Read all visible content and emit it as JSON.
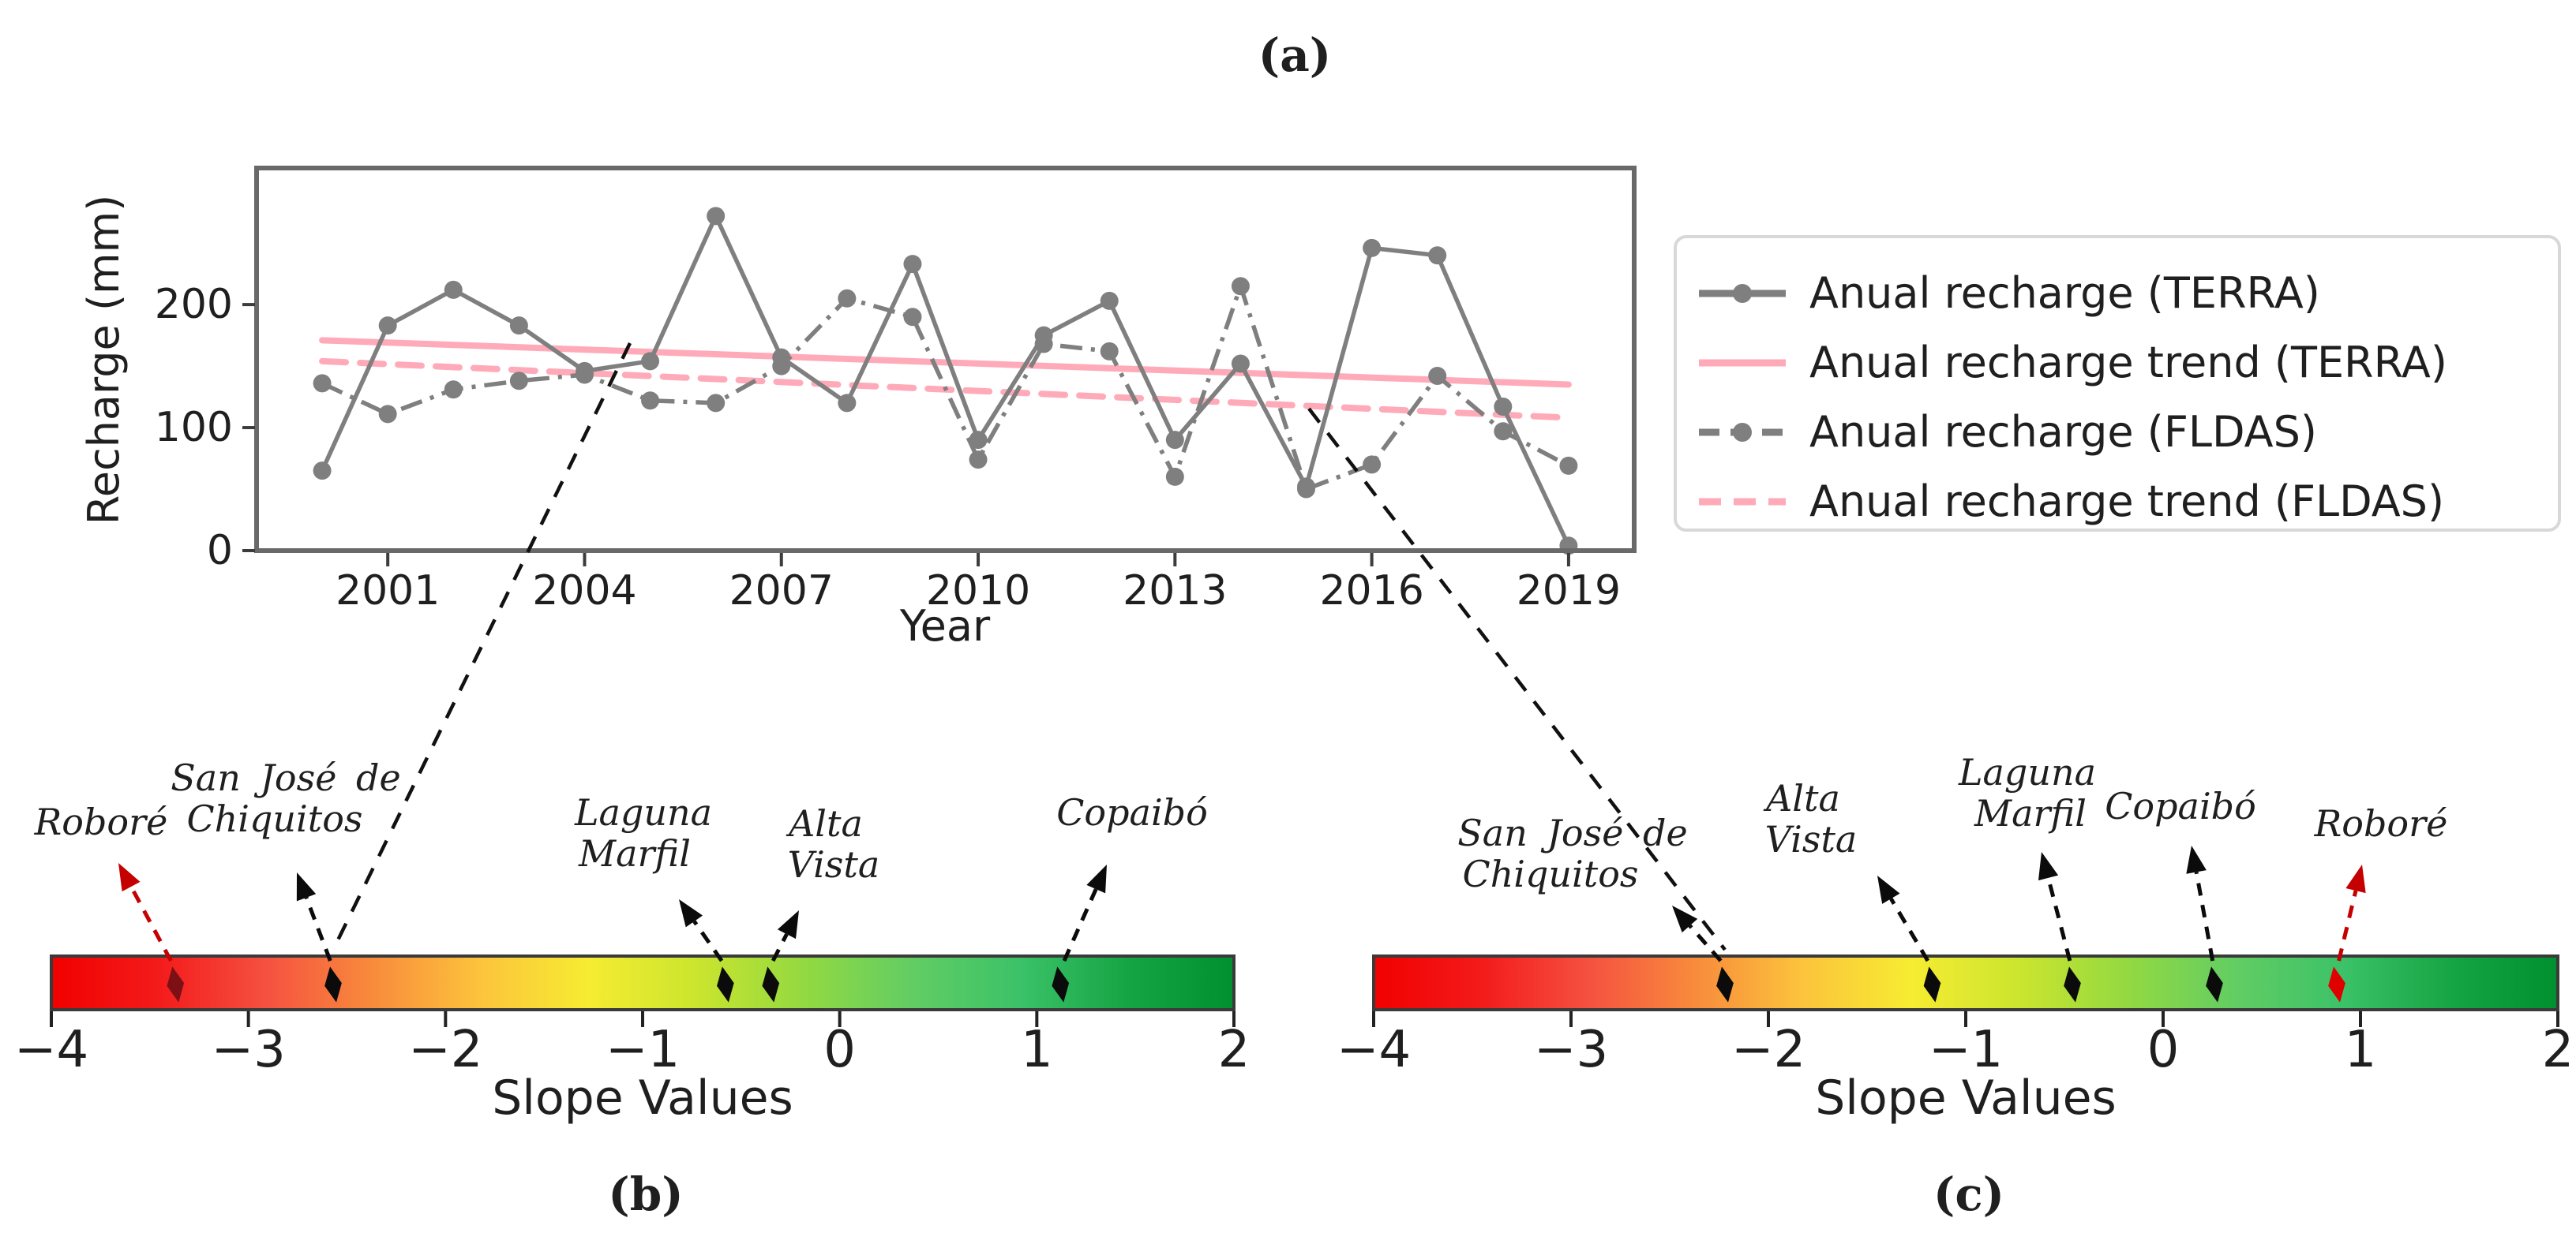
{
  "figure": {
    "panel_a_label": "(a)",
    "panel_b_label": "(b)",
    "panel_c_label": "(c)"
  },
  "chart_data": {
    "type": "line",
    "xlabel": "Year",
    "ylabel": "Recharge (mm)",
    "xlim": [
      1999,
      2020
    ],
    "ylim": [
      0,
      311
    ],
    "x_ticks": [
      2001,
      2004,
      2007,
      2010,
      2013,
      2016,
      2019
    ],
    "y_ticks": [
      0,
      100,
      200
    ],
    "grid": "off",
    "legend_position": "outside-right",
    "x": [
      2000,
      2001,
      2002,
      2003,
      2004,
      2005,
      2006,
      2007,
      2008,
      2009,
      2010,
      2011,
      2012,
      2013,
      2014,
      2015,
      2016,
      2017,
      2018,
      2019
    ],
    "series": [
      {
        "name": "Anual recharge (TERRA)",
        "style": "solid-marker",
        "color": "#7f7f7f",
        "values": [
          65,
          183,
          212,
          183,
          146,
          154,
          272,
          157,
          120,
          233,
          90,
          175,
          203,
          90,
          152,
          52,
          246,
          240,
          117,
          4
        ]
      },
      {
        "name": "Anual recharge (FLDAS)",
        "style": "dashdot-marker",
        "color": "#7f7f7f",
        "values": [
          136,
          111,
          131,
          138,
          143,
          122,
          120,
          150,
          205,
          190,
          74,
          168,
          162,
          60,
          215,
          50,
          70,
          142,
          97,
          69
        ]
      }
    ],
    "trends": [
      {
        "name": "Anual recharge trend (TERRA)",
        "style": "solid",
        "color": "#ffaab9",
        "x": [
          2000,
          2019
        ],
        "y": [
          171,
          135
        ]
      },
      {
        "name": "Anual recharge trend (FLDAS)",
        "style": "dashed",
        "color": "#ffaab9",
        "x": [
          2000,
          2019
        ],
        "y": [
          154,
          108
        ]
      }
    ]
  },
  "legend": {
    "items": [
      {
        "label": "Anual recharge (TERRA)",
        "swatch": "gray-solid-marker"
      },
      {
        "label": "Anual recharge trend (TERRA)",
        "swatch": "pink-solid"
      },
      {
        "label": "Anual recharge (FLDAS)",
        "swatch": "gray-dashdot-marker"
      },
      {
        "label": "Anual recharge trend (FLDAS)",
        "swatch": "pink-dashed"
      }
    ]
  },
  "colorbars": [
    {
      "id": "b",
      "axis_label": "Slope Values",
      "range": [
        -4,
        2
      ],
      "ticks": [
        -4,
        -3,
        -2,
        -1,
        0,
        1,
        2
      ],
      "sites": [
        {
          "name": "Roboré",
          "lines": [
            "Roboré"
          ],
          "value": -3.37,
          "marker_color": "#7d1014",
          "arrow_color": "#c40000"
        },
        {
          "name": "San José de Chiquitos",
          "lines": [
            "San José de",
            "Chiquitos"
          ],
          "value": -2.57,
          "marker_color": "#0b0b0b",
          "arrow_color": "#0b0b0b"
        },
        {
          "name": "Laguna Marfil",
          "lines": [
            "Laguna",
            "Marfil"
          ],
          "value": -0.58,
          "marker_color": "#0b0b0b",
          "arrow_color": "#0b0b0b"
        },
        {
          "name": "Alta Vista",
          "lines": [
            "Alta",
            "Vista"
          ],
          "value": -0.35,
          "marker_color": "#0b0b0b",
          "arrow_color": "#0b0b0b"
        },
        {
          "name": "Copaibó",
          "lines": [
            "Copaibó"
          ],
          "value": 1.12,
          "marker_color": "#0b0b0b",
          "arrow_color": "#0b0b0b"
        }
      ]
    },
    {
      "id": "c",
      "axis_label": "Slope Values",
      "range": [
        -4,
        2
      ],
      "ticks": [
        -4,
        -3,
        -2,
        -1,
        0,
        1,
        2
      ],
      "sites": [
        {
          "name": "San José de Chiquitos",
          "lines": [
            "San José de",
            "Chiquitos"
          ],
          "value": -2.22,
          "marker_color": "#0b0b0b",
          "arrow_color": "#0b0b0b"
        },
        {
          "name": "Alta Vista",
          "lines": [
            "Alta",
            "Vista"
          ],
          "value": -1.17,
          "marker_color": "#0b0b0b",
          "arrow_color": "#0b0b0b"
        },
        {
          "name": "Laguna Marfil",
          "lines": [
            "Laguna",
            "Marfil"
          ],
          "value": -0.46,
          "marker_color": "#0b0b0b",
          "arrow_color": "#0b0b0b"
        },
        {
          "name": "Copaibó",
          "lines": [
            "Copaibó"
          ],
          "value": 0.26,
          "marker_color": "#0b0b0b",
          "arrow_color": "#0b0b0b"
        },
        {
          "name": "Roboré",
          "lines": [
            "Roboré"
          ],
          "value": 0.88,
          "marker_color": "#df0000",
          "arrow_color": "#c40000"
        }
      ]
    }
  ],
  "colors": {
    "series_gray": "#7f7f7f",
    "trend_pink": "#ffaab9",
    "spine_gray": "#696969",
    "gradient_stops": [
      "#f20000",
      "#f31b1b",
      "#f55140",
      "#f88c3c",
      "#fcc43c",
      "#f6ec31",
      "#cbe52e",
      "#93d941",
      "#62cd63",
      "#3cc268",
      "#16a545",
      "#00902f"
    ]
  }
}
